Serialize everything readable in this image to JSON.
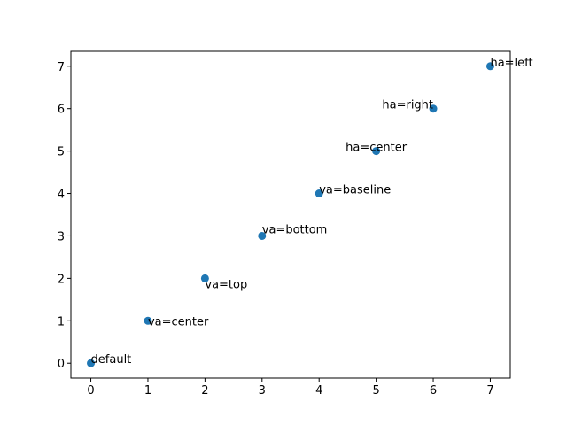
{
  "chart_data": {
    "type": "scatter",
    "title": "",
    "xlabel": "",
    "ylabel": "",
    "xlim": [
      -0.35,
      7.35
    ],
    "ylim": [
      -0.35,
      7.35
    ],
    "xticks": [
      0,
      1,
      2,
      3,
      4,
      5,
      6,
      7
    ],
    "yticks": [
      0,
      1,
      2,
      3,
      4,
      5,
      6,
      7
    ],
    "grid": false,
    "marker_color": "#1f77b4",
    "points": [
      {
        "x": 0,
        "y": 0,
        "label": "default",
        "ha": "left",
        "va": "baseline"
      },
      {
        "x": 1,
        "y": 1,
        "label": "va=center",
        "ha": "left",
        "va": "center"
      },
      {
        "x": 2,
        "y": 2,
        "label": "va=top",
        "ha": "left",
        "va": "top"
      },
      {
        "x": 3,
        "y": 3,
        "label": "va=bottom",
        "ha": "left",
        "va": "bottom"
      },
      {
        "x": 4,
        "y": 4,
        "label": "va=baseline",
        "ha": "left",
        "va": "baseline"
      },
      {
        "x": 5,
        "y": 5,
        "label": "ha=center",
        "ha": "center",
        "va": "baseline"
      },
      {
        "x": 6,
        "y": 6,
        "label": "ha=right",
        "ha": "right",
        "va": "baseline"
      },
      {
        "x": 7,
        "y": 7,
        "label": "ha=left",
        "ha": "left",
        "va": "baseline"
      }
    ]
  }
}
